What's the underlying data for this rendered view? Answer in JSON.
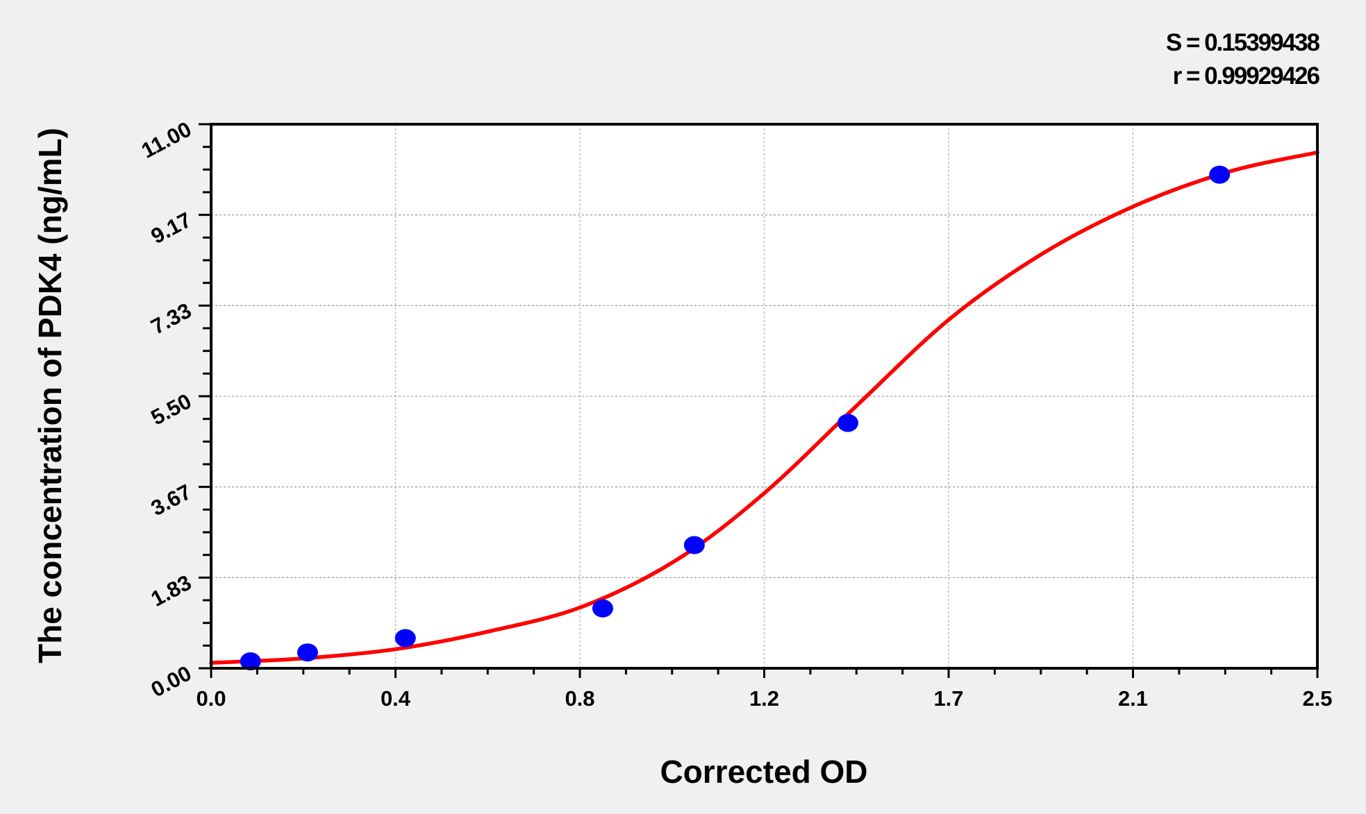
{
  "stats": {
    "s_label": "S = 0.15399438",
    "r_label": "r = 0.99929426"
  },
  "chart_data": {
    "type": "scatter",
    "xlabel": "Corrected OD",
    "ylabel": "The concentration of PDK4 (ng/mL)",
    "xlim": [
      0,
      2.5
    ],
    "ylim": [
      0,
      11
    ],
    "x_tick_labels": [
      "0.0",
      "0.4",
      "0.8",
      "1.2",
      "1.7",
      "2.1",
      "2.5"
    ],
    "y_tick_labels": [
      "0.00",
      "1.83",
      "3.67",
      "5.50",
      "7.33",
      "9.17",
      "11.00"
    ],
    "grid": true,
    "points": {
      "color": "#0000ff",
      "x": [
        0.089,
        0.218,
        0.439,
        0.885,
        1.092,
        1.439,
        2.279
      ],
      "y": [
        0.14,
        0.32,
        0.61,
        1.21,
        2.49,
        4.96,
        9.98
      ]
    },
    "fit_curve": {
      "color": "#ff0000",
      "x": [
        0,
        0.21,
        0.42,
        0.63,
        0.84,
        1.05,
        1.25,
        1.46,
        1.67,
        1.88,
        2.09,
        2.3,
        2.5
      ],
      "y": [
        0.11,
        0.2,
        0.39,
        0.75,
        1.25,
        2.18,
        3.54,
        5.32,
        7.07,
        8.39,
        9.36,
        10.04,
        10.43
      ]
    }
  }
}
